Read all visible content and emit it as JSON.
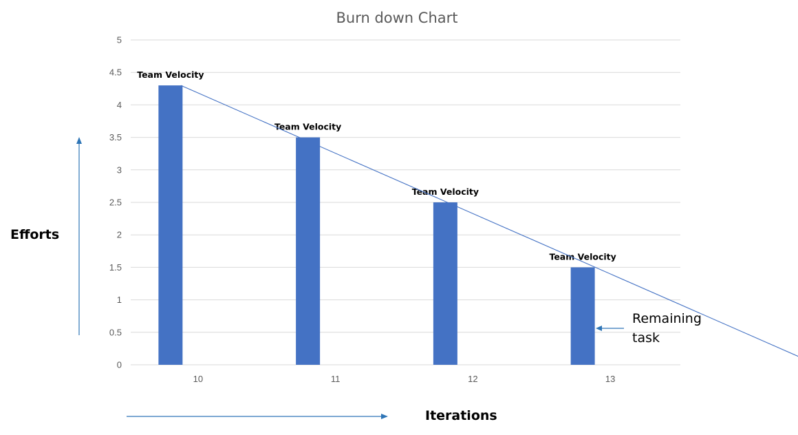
{
  "chart_data": {
    "type": "bar",
    "title": "Burn down Chart",
    "xlabel": "Iterations",
    "ylabel": "Efforts",
    "categories": [
      "10",
      "11",
      "12",
      "13"
    ],
    "values": [
      4.3,
      3.5,
      2.5,
      1.5
    ],
    "data_labels": [
      "Team Velocity",
      "Team Velocity",
      "Team Velocity",
      "Team Velocity"
    ],
    "ylim": [
      0,
      5
    ],
    "yticks": [
      "0",
      "0.5",
      "1",
      "1.5",
      "2",
      "2.5",
      "3",
      "3.5",
      "4",
      "4.5",
      "5"
    ],
    "grid": true,
    "legend": "none",
    "trend_line": {
      "type": "linear",
      "from": [
        10,
        4.3
      ],
      "to": [
        14.6,
        0.1
      ]
    },
    "annotation": {
      "line1": "Remaining",
      "line2": "task"
    }
  },
  "colors": {
    "bar": "#4472C4",
    "line": "#4472C4",
    "grid": "#D9D9D9",
    "text": "#595959",
    "arrow": "#2E75B6"
  }
}
